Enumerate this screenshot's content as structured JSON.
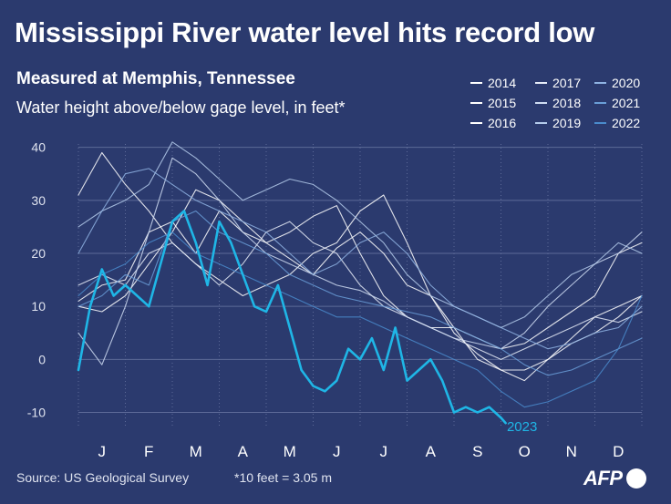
{
  "title": "Mississippi River water level hits record low",
  "subtitle": "Measured at Memphis, Tennessee",
  "ylabel": "Water height above/below gage level, in feet*",
  "source": "Source: US Geological Survey",
  "footnote": "*10 feet = 3.05 m",
  "logo": "AFP",
  "colors": {
    "background": "#2b3a6e",
    "grid": "#5d6a98",
    "highlight": "#1fb6e6"
  },
  "chart_data": {
    "type": "line",
    "x_unit": "month of year (1.0 = start of January, 13.0 = end of December)",
    "xticks": [
      "J",
      "F",
      "M",
      "A",
      "M",
      "J",
      "J",
      "A",
      "S",
      "O",
      "N",
      "D"
    ],
    "yticks": [
      "-10",
      "0",
      "10",
      "20",
      "30",
      "40"
    ],
    "ylim": [
      -13,
      42
    ],
    "grid": "horizontal",
    "legend_position": "top-right",
    "highlight_label": "2023",
    "series": [
      {
        "name": "2014",
        "color": "#ffffff",
        "x": [
          1,
          1.5,
          2,
          2.5,
          3,
          3.5,
          4,
          4.5,
          5,
          5.5,
          6,
          6.5,
          7,
          7.5,
          8,
          8.5,
          9,
          9.5,
          10,
          10.5,
          11,
          11.5,
          12,
          12.5,
          13
        ],
        "y": [
          11,
          14,
          15,
          24,
          26,
          20,
          28,
          24,
          22,
          19,
          16,
          21,
          24,
          20,
          14,
          12,
          6,
          0,
          -2,
          -2,
          0,
          3,
          5,
          8,
          12
        ]
      },
      {
        "name": "2015",
        "color": "#ffffff",
        "x": [
          1,
          1.5,
          2,
          2.5,
          3,
          3.5,
          4,
          4.5,
          5,
          5.5,
          6,
          6.5,
          7,
          7.5,
          8,
          8.5,
          9,
          9.5,
          10,
          10.5,
          11,
          11.5,
          12,
          12.5,
          13
        ],
        "y": [
          10,
          9,
          12,
          18,
          24,
          32,
          30,
          26,
          22,
          24,
          27,
          29,
          20,
          12,
          8,
          6,
          6,
          4,
          2,
          3,
          6,
          9,
          12,
          20,
          22
        ]
      },
      {
        "name": "2016",
        "color": "#ffffff",
        "x": [
          1,
          1.5,
          2,
          2.5,
          3,
          3.5,
          4,
          4.5,
          5,
          5.5,
          6,
          6.5,
          7,
          7.5,
          8,
          8.5,
          9,
          9.5,
          10,
          10.5,
          11,
          11.5,
          12,
          12.5,
          13
        ],
        "y": [
          31,
          39,
          33,
          28,
          22,
          18,
          15,
          12,
          14,
          16,
          20,
          22,
          28,
          31,
          22,
          12,
          5,
          1,
          -2,
          -4,
          0,
          4,
          8,
          10,
          12
        ]
      },
      {
        "name": "2017",
        "color": "#e6ecf8",
        "x": [
          1,
          1.5,
          2,
          2.5,
          3,
          3.5,
          4,
          4.5,
          5,
          5.5,
          6,
          6.5,
          7,
          7.5,
          8,
          8.5,
          9,
          9.5,
          10,
          10.5,
          11,
          11.5,
          12,
          12.5,
          13
        ],
        "y": [
          14,
          16,
          14,
          20,
          22,
          18,
          14,
          18,
          24,
          26,
          22,
          20,
          14,
          10,
          8,
          6,
          4,
          2,
          0,
          2,
          4,
          6,
          8,
          7,
          9
        ]
      },
      {
        "name": "2018",
        "color": "#cfdcf2",
        "x": [
          1,
          1.5,
          2,
          2.5,
          3,
          3.5,
          4,
          4.5,
          5,
          5.5,
          6,
          6.5,
          7,
          7.5,
          8,
          8.5,
          9,
          9.5,
          10,
          10.5,
          11,
          11.5,
          12,
          12.5,
          13
        ],
        "y": [
          5,
          -1,
          10,
          24,
          38,
          35,
          30,
          24,
          20,
          18,
          16,
          14,
          13,
          11,
          8,
          6,
          4,
          3,
          2,
          5,
          10,
          14,
          18,
          20,
          24
        ]
      },
      {
        "name": "2019",
        "color": "#b4cbeb",
        "x": [
          1,
          1.5,
          2,
          2.5,
          3,
          3.5,
          4,
          4.5,
          5,
          5.5,
          6,
          6.5,
          7,
          7.5,
          8,
          8.5,
          9,
          9.5,
          10,
          10.5,
          11,
          11.5,
          12,
          12.5,
          13
        ],
        "y": [
          25,
          28,
          30,
          33,
          41,
          38,
          34,
          30,
          32,
          34,
          33,
          30,
          26,
          22,
          16,
          12,
          10,
          8,
          6,
          8,
          12,
          16,
          18,
          22,
          20
        ]
      },
      {
        "name": "2020",
        "color": "#8fb3e3",
        "x": [
          1,
          1.5,
          2,
          2.5,
          3,
          3.5,
          4,
          4.5,
          5,
          5.5,
          6,
          6.5,
          7,
          7.5,
          8,
          8.5,
          9,
          9.5,
          10,
          10.5,
          11,
          11.5,
          12,
          12.5,
          13
        ],
        "y": [
          20,
          28,
          35,
          36,
          33,
          30,
          28,
          26,
          24,
          20,
          16,
          18,
          22,
          24,
          20,
          14,
          10,
          8,
          6,
          4,
          2,
          3,
          5,
          6,
          10
        ]
      },
      {
        "name": "2021",
        "color": "#6a9ed8",
        "x": [
          1,
          1.5,
          2,
          2.5,
          3,
          3.5,
          4,
          4.5,
          5,
          5.5,
          6,
          6.5,
          7,
          7.5,
          8,
          8.5,
          9,
          9.5,
          10,
          10.5,
          11,
          11.5,
          12,
          12.5,
          13
        ],
        "y": [
          10,
          12,
          16,
          14,
          26,
          28,
          24,
          22,
          20,
          16,
          14,
          12,
          11,
          10,
          9,
          8,
          6,
          4,
          2,
          -1,
          -3,
          -2,
          0,
          2,
          4
        ]
      },
      {
        "name": "2022",
        "color": "#4a8bcc",
        "x": [
          1,
          1.5,
          2,
          2.5,
          3,
          3.5,
          4,
          4.5,
          5,
          5.5,
          6,
          6.5,
          7,
          7.5,
          8,
          8.5,
          9,
          9.5,
          10,
          10.5,
          11,
          11.5,
          12,
          12.5,
          13
        ],
        "y": [
          12,
          16,
          18,
          22,
          24,
          20,
          18,
          16,
          14,
          12,
          10,
          8,
          8,
          6,
          4,
          2,
          0,
          -2,
          -6,
          -9,
          -8,
          -6,
          -4,
          2,
          12
        ]
      },
      {
        "name": "2023",
        "color": "#1fb6e6",
        "x": [
          1,
          1.25,
          1.5,
          1.75,
          2,
          2.5,
          3,
          3.25,
          3.5,
          3.75,
          4,
          4.25,
          4.5,
          4.75,
          5,
          5.25,
          5.5,
          5.75,
          6,
          6.25,
          6.5,
          6.75,
          7,
          7.25,
          7.5,
          7.75,
          8,
          8.25,
          8.5,
          8.75,
          9,
          9.25,
          9.5,
          9.75,
          10,
          10.1
        ],
        "y": [
          -2,
          10,
          17,
          12,
          14,
          10,
          26,
          28,
          22,
          14,
          26,
          22,
          16,
          10,
          9,
          14,
          6,
          -2,
          -5,
          -6,
          -4,
          2,
          0,
          4,
          -2,
          6,
          -4,
          -2,
          0,
          -4,
          -10,
          -9,
          -10,
          -9,
          -11,
          -12
        ]
      }
    ]
  }
}
